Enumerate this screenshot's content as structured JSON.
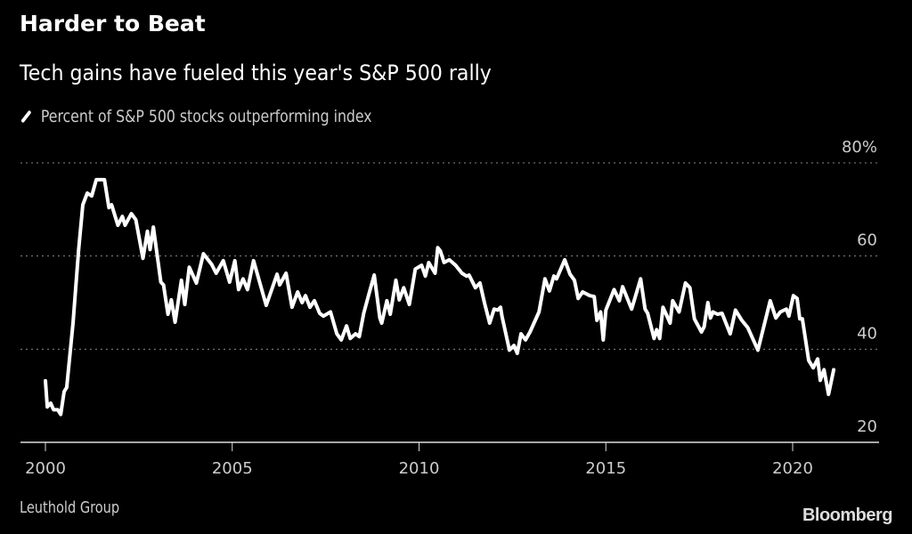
{
  "header": {
    "title": "Harder to Beat",
    "subtitle": "Tech gains have fueled this year's S&P 500 rally"
  },
  "footer": {
    "source": "Leuthold Group",
    "logo": "Bloomberg"
  },
  "colors": {
    "background": "#000000",
    "line": "#ffffff",
    "grid": "#888888"
  },
  "chart_data": {
    "type": "line",
    "title": "Harder to Beat",
    "subtitle": "Tech gains have fueled this year's S&P 500 rally",
    "legend_position": "top-left",
    "grid": true,
    "xlim": [
      2000,
      2021.5
    ],
    "ylim": [
      20,
      80
    ],
    "x_ticks": [
      "2000",
      "2005",
      "2010",
      "2015",
      "2020"
    ],
    "y_ticks": [
      "80%",
      "60",
      "40",
      "20"
    ],
    "series": [
      {
        "name": "Percent of S&P 500 stocks outperforming index",
        "points": [
          [
            2000.0,
            33.2
          ],
          [
            2000.05,
            27.6
          ],
          [
            2000.14,
            28.4
          ],
          [
            2000.22,
            27
          ],
          [
            2000.33,
            27
          ],
          [
            2000.41,
            26
          ],
          [
            2000.5,
            30.9
          ],
          [
            2000.57,
            31.8
          ],
          [
            2000.74,
            45.6
          ],
          [
            2000.89,
            61.4
          ],
          [
            2001.0,
            71
          ],
          [
            2001.12,
            73.5
          ],
          [
            2001.24,
            72.9
          ],
          [
            2001.36,
            76.4
          ],
          [
            2001.58,
            76.4
          ],
          [
            2001.7,
            70.4
          ],
          [
            2001.77,
            71
          ],
          [
            2001.94,
            66.6
          ],
          [
            2002.06,
            68.5
          ],
          [
            2002.13,
            66.6
          ],
          [
            2002.3,
            69.1
          ],
          [
            2002.42,
            67.8
          ],
          [
            2002.61,
            59.5
          ],
          [
            2002.73,
            65.3
          ],
          [
            2002.8,
            61.4
          ],
          [
            2002.89,
            66.2
          ],
          [
            2003.09,
            54.4
          ],
          [
            2003.16,
            53.8
          ],
          [
            2003.28,
            47.5
          ],
          [
            2003.37,
            50.6
          ],
          [
            2003.47,
            45.8
          ],
          [
            2003.64,
            54.8
          ],
          [
            2003.73,
            49.6
          ],
          [
            2003.85,
            57.6
          ],
          [
            2004.04,
            54.2
          ],
          [
            2004.23,
            60.5
          ],
          [
            2004.45,
            58.2
          ],
          [
            2004.57,
            56.3
          ],
          [
            2004.76,
            59
          ],
          [
            2004.93,
            54.4
          ],
          [
            2005.07,
            59
          ],
          [
            2005.17,
            52.8
          ],
          [
            2005.29,
            55.1
          ],
          [
            2005.41,
            52.8
          ],
          [
            2005.57,
            59
          ],
          [
            2005.91,
            49.4
          ],
          [
            2006.2,
            56.1
          ],
          [
            2006.27,
            53.8
          ],
          [
            2006.44,
            56.3
          ],
          [
            2006.6,
            49
          ],
          [
            2006.75,
            52.3
          ],
          [
            2006.87,
            50
          ],
          [
            2006.96,
            51.5
          ],
          [
            2007.08,
            49
          ],
          [
            2007.2,
            50.4
          ],
          [
            2007.34,
            47.7
          ],
          [
            2007.44,
            47.1
          ],
          [
            2007.63,
            48
          ],
          [
            2007.8,
            43.3
          ],
          [
            2007.92,
            42
          ],
          [
            2008.06,
            45
          ],
          [
            2008.16,
            42.3
          ],
          [
            2008.3,
            43.3
          ],
          [
            2008.4,
            42.7
          ],
          [
            2008.52,
            47.7
          ],
          [
            2008.66,
            51.9
          ],
          [
            2008.8,
            55.9
          ],
          [
            2008.95,
            46.7
          ],
          [
            2009.0,
            45.6
          ],
          [
            2009.14,
            50.4
          ],
          [
            2009.23,
            47.5
          ],
          [
            2009.38,
            54.8
          ],
          [
            2009.47,
            50.6
          ],
          [
            2009.59,
            53.2
          ],
          [
            2009.74,
            49.6
          ],
          [
            2009.9,
            57.2
          ],
          [
            2010.07,
            58
          ],
          [
            2010.17,
            55.7
          ],
          [
            2010.26,
            58.6
          ],
          [
            2010.43,
            56.3
          ],
          [
            2010.5,
            61.8
          ],
          [
            2010.57,
            61.1
          ],
          [
            2010.67,
            58.6
          ],
          [
            2010.81,
            59.2
          ],
          [
            2010.98,
            58
          ],
          [
            2011.15,
            56.3
          ],
          [
            2011.27,
            55.7
          ],
          [
            2011.34,
            55.9
          ],
          [
            2011.51,
            53.2
          ],
          [
            2011.63,
            54.2
          ],
          [
            2011.75,
            50
          ],
          [
            2011.89,
            45.6
          ],
          [
            2012.01,
            48.6
          ],
          [
            2012.11,
            48.4
          ],
          [
            2012.18,
            49
          ],
          [
            2012.22,
            47.1
          ],
          [
            2012.42,
            39.8
          ],
          [
            2012.54,
            40.8
          ],
          [
            2012.63,
            39.1
          ],
          [
            2012.73,
            43.3
          ],
          [
            2012.85,
            42
          ],
          [
            2012.97,
            43.7
          ],
          [
            2013.21,
            48
          ],
          [
            2013.37,
            55.1
          ],
          [
            2013.49,
            52.5
          ],
          [
            2013.61,
            55.7
          ],
          [
            2013.68,
            55.1
          ],
          [
            2013.9,
            59.2
          ],
          [
            2014.04,
            56.1
          ],
          [
            2014.16,
            54.8
          ],
          [
            2014.26,
            50.9
          ],
          [
            2014.38,
            52.3
          ],
          [
            2014.57,
            51.5
          ],
          [
            2014.69,
            51.3
          ],
          [
            2014.76,
            46.2
          ],
          [
            2014.86,
            48
          ],
          [
            2014.93,
            42
          ],
          [
            2015.0,
            48.4
          ],
          [
            2015.22,
            52.8
          ],
          [
            2015.36,
            50.4
          ],
          [
            2015.45,
            53.4
          ],
          [
            2015.69,
            48.6
          ],
          [
            2015.93,
            55.1
          ],
          [
            2016.05,
            48.6
          ],
          [
            2016.12,
            47.7
          ],
          [
            2016.29,
            42.3
          ],
          [
            2016.36,
            44.2
          ],
          [
            2016.44,
            42.3
          ],
          [
            2016.53,
            49
          ],
          [
            2016.72,
            45.6
          ],
          [
            2016.79,
            50.4
          ],
          [
            2016.96,
            48
          ],
          [
            2017.13,
            54.2
          ],
          [
            2017.25,
            53.2
          ],
          [
            2017.37,
            46.5
          ],
          [
            2017.56,
            43.7
          ],
          [
            2017.63,
            44.8
          ],
          [
            2017.73,
            50
          ],
          [
            2017.8,
            46.7
          ],
          [
            2017.87,
            48
          ],
          [
            2017.99,
            47.5
          ],
          [
            2018.11,
            47.7
          ],
          [
            2018.33,
            43.3
          ],
          [
            2018.47,
            48.4
          ],
          [
            2018.64,
            46.2
          ],
          [
            2018.8,
            44.6
          ],
          [
            2019.07,
            39.8
          ],
          [
            2019.4,
            50.4
          ],
          [
            2019.55,
            46.7
          ],
          [
            2019.67,
            48
          ],
          [
            2019.83,
            48.6
          ],
          [
            2019.9,
            47.1
          ],
          [
            2020.02,
            51.5
          ],
          [
            2020.12,
            50.9
          ],
          [
            2020.19,
            46.5
          ],
          [
            2020.26,
            46.5
          ],
          [
            2020.43,
            37.6
          ],
          [
            2020.55,
            36
          ],
          [
            2020.67,
            37.9
          ],
          [
            2020.74,
            33.3
          ],
          [
            2020.84,
            35.6
          ],
          [
            2020.96,
            30.3
          ],
          [
            2021.1,
            35.6
          ]
        ]
      }
    ]
  }
}
